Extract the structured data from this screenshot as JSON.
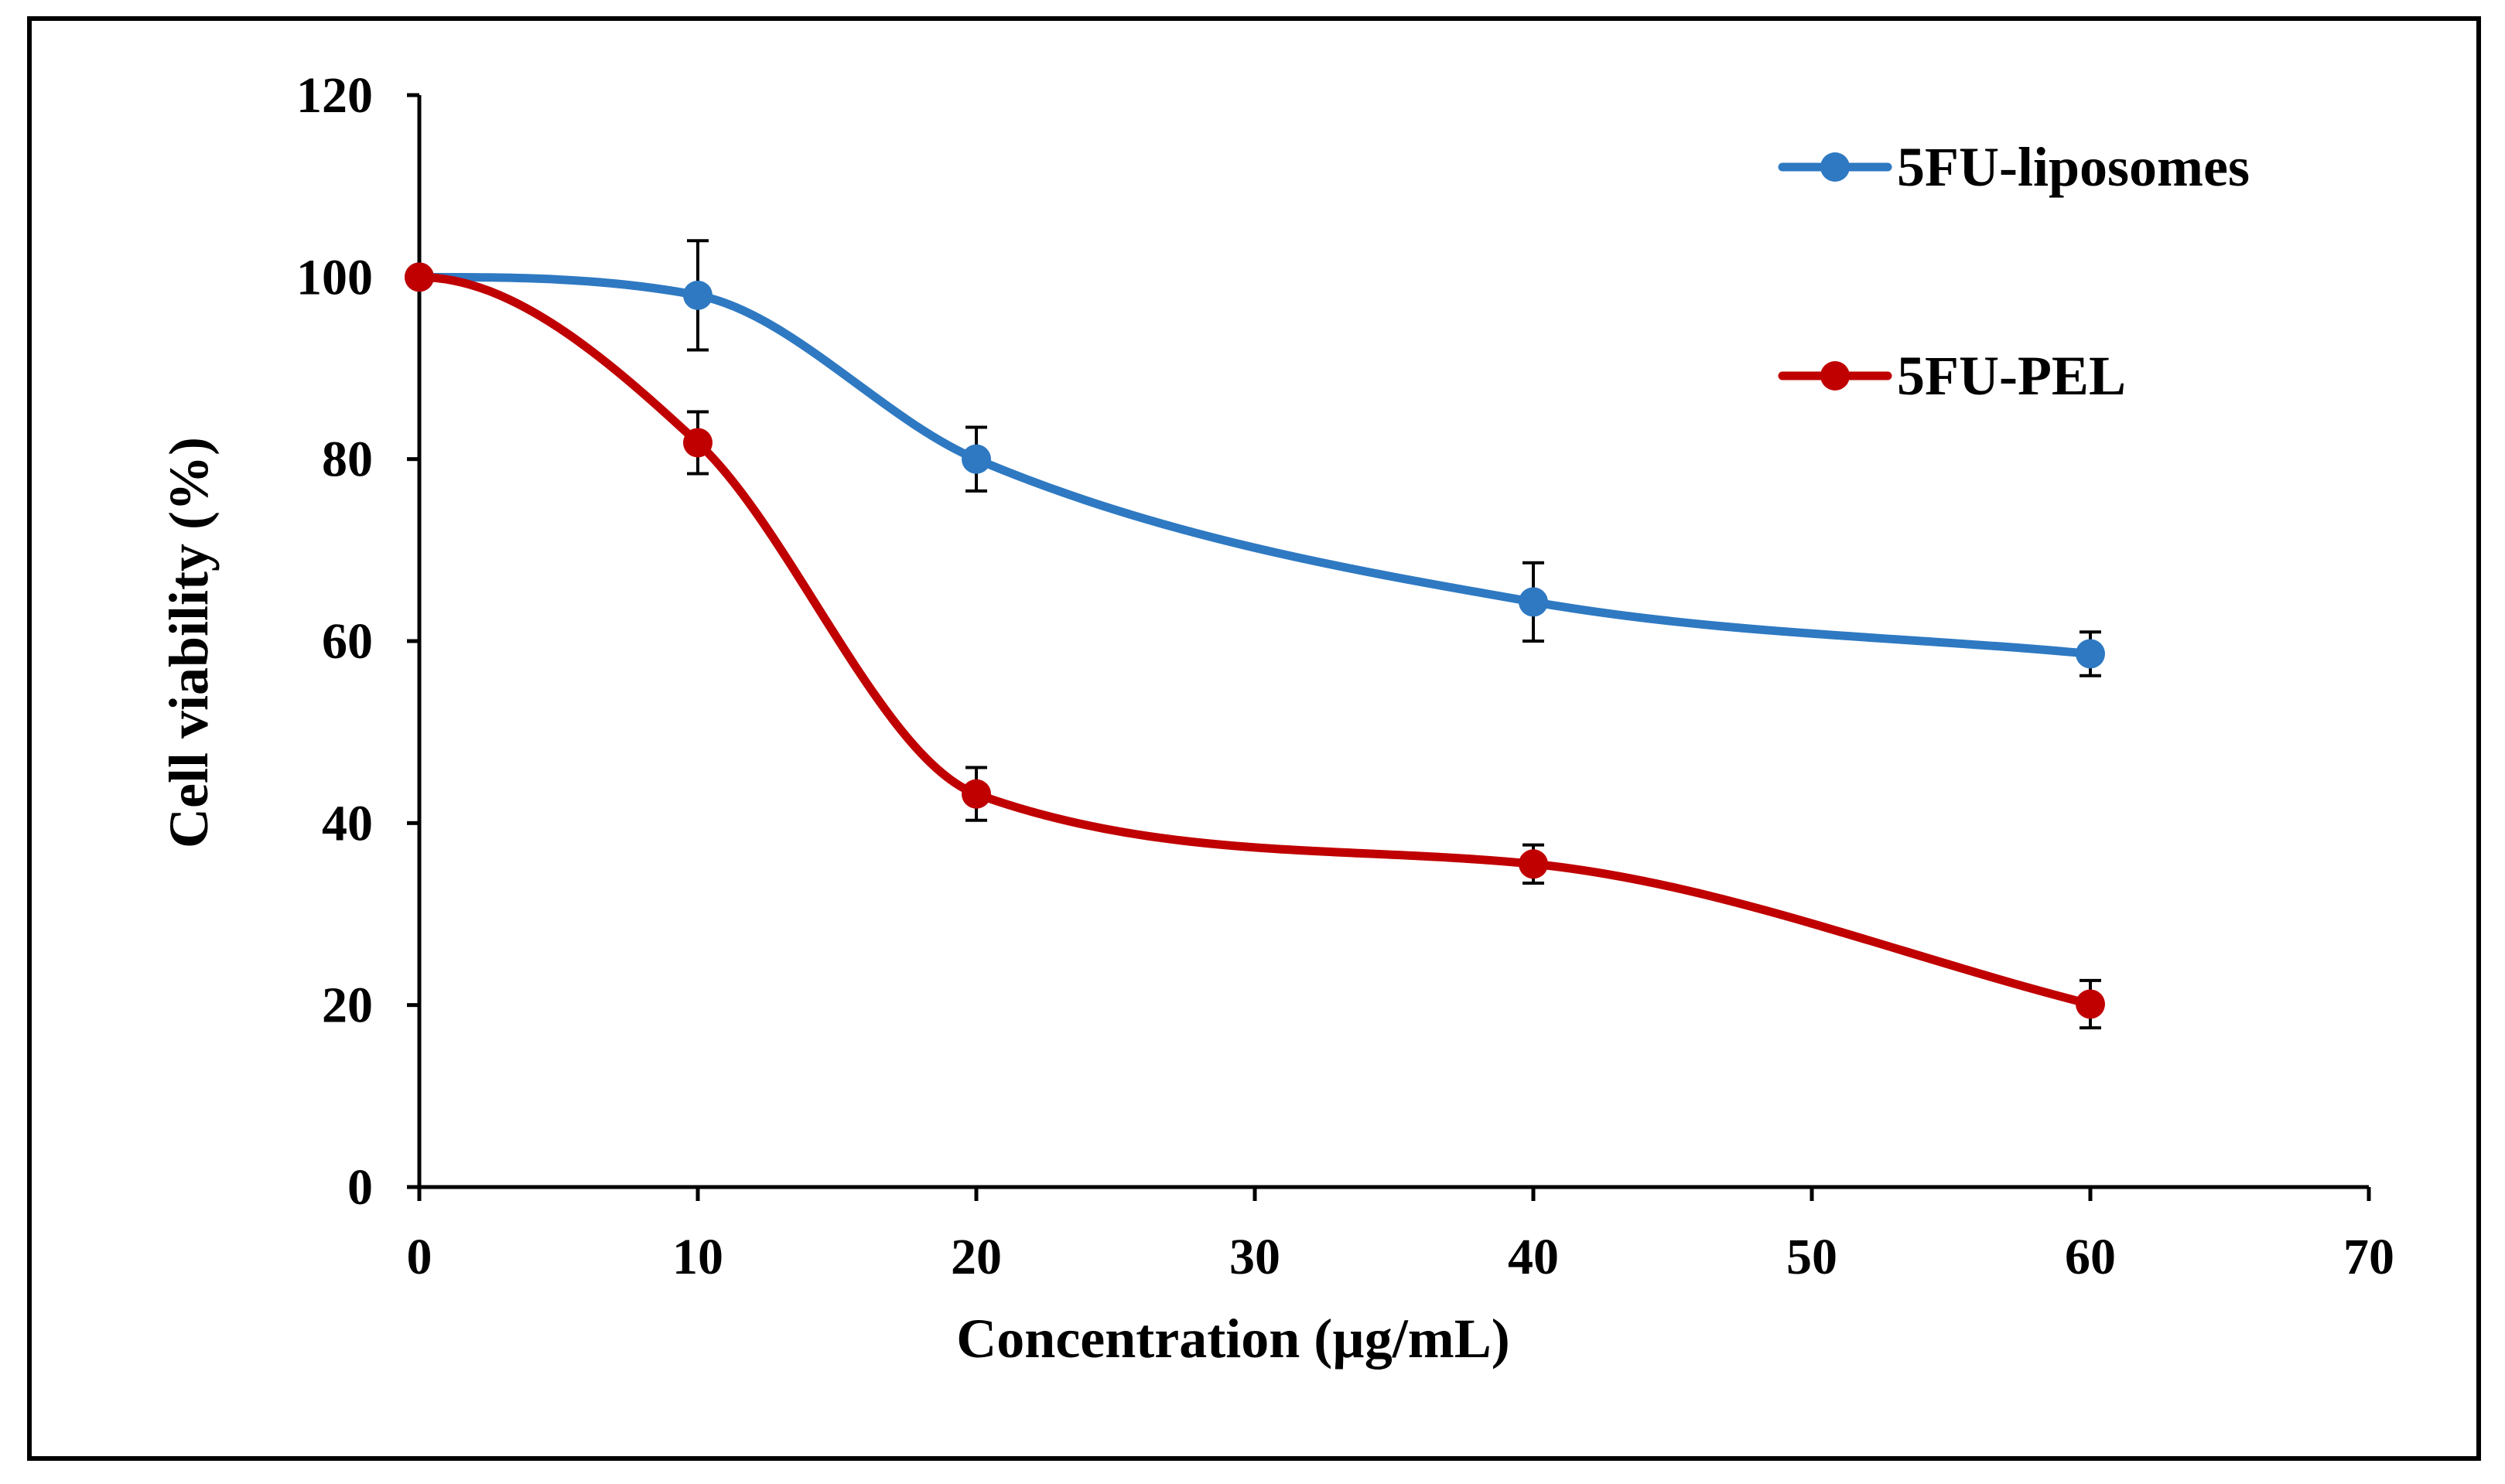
{
  "chart_data": {
    "type": "line",
    "title": "",
    "xlabel": "Concentration (µg/mL)",
    "ylabel": "Cell viability (%)",
    "xlim": [
      0,
      70
    ],
    "ylim": [
      0,
      120
    ],
    "xticks": [
      0,
      10,
      20,
      30,
      40,
      50,
      60,
      70
    ],
    "yticks": [
      0,
      20,
      40,
      60,
      80,
      100,
      120
    ],
    "grid": false,
    "legend_position": "top-right",
    "smooth": true,
    "series": [
      {
        "name": "5FU-liposomes",
        "color": "#2e79c2",
        "x": [
          0,
          10,
          20,
          40,
          60
        ],
        "y": [
          100,
          98,
          80,
          64.3,
          58.6
        ],
        "error": [
          0,
          6,
          3.5,
          4.3,
          2.4
        ]
      },
      {
        "name": "5FU-PEL",
        "color": "#c00000",
        "x": [
          0,
          10,
          20,
          40,
          60
        ],
        "y": [
          100,
          81.8,
          43.2,
          35.5,
          20.1
        ],
        "error": [
          0,
          3.4,
          2.9,
          2.1,
          2.6
        ]
      }
    ]
  }
}
